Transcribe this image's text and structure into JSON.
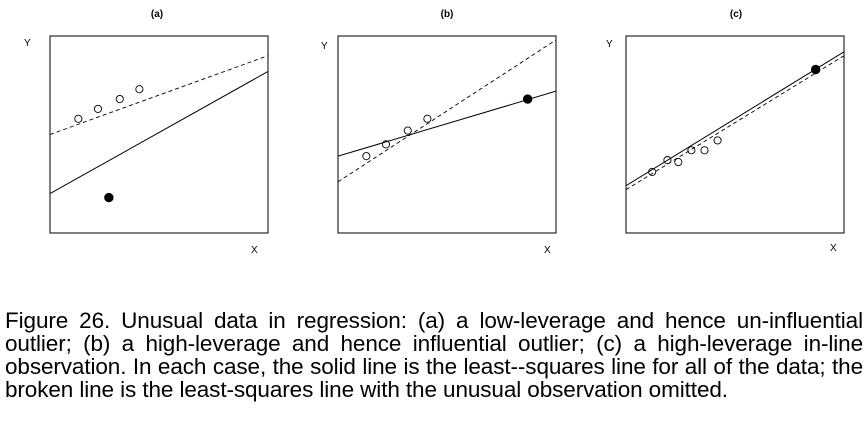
{
  "panels": [
    {
      "title": "(a)",
      "ylabel": "Y",
      "xlabel": "X",
      "open_points": [
        [
          0.13,
          0.58
        ],
        [
          0.22,
          0.63
        ],
        [
          0.32,
          0.68
        ],
        [
          0.41,
          0.73
        ]
      ],
      "filled_point": [
        0.27,
        0.18
      ],
      "solid_line": [
        [
          0.0,
          0.2
        ],
        [
          1.0,
          0.82
        ]
      ],
      "dashed_line": [
        [
          0.0,
          0.5
        ],
        [
          1.0,
          0.9
        ]
      ]
    },
    {
      "title": "(b)",
      "ylabel": "Y",
      "xlabel": "X",
      "open_points": [
        [
          0.13,
          0.39
        ],
        [
          0.22,
          0.45
        ],
        [
          0.32,
          0.52
        ],
        [
          0.41,
          0.58
        ]
      ],
      "filled_point": [
        0.87,
        0.68
      ],
      "solid_line": [
        [
          0.0,
          0.39
        ],
        [
          1.0,
          0.72
        ]
      ],
      "dashed_line": [
        [
          0.0,
          0.26
        ],
        [
          1.0,
          0.98
        ]
      ]
    },
    {
      "title": "(c)",
      "ylabel": "Y",
      "xlabel": "X",
      "open_points": [
        [
          0.12,
          0.31
        ],
        [
          0.19,
          0.37
        ],
        [
          0.24,
          0.36
        ],
        [
          0.3,
          0.42
        ],
        [
          0.36,
          0.42
        ],
        [
          0.42,
          0.47
        ]
      ],
      "filled_point": [
        0.87,
        0.83
      ],
      "solid_line": [
        [
          0.0,
          0.24
        ],
        [
          1.0,
          0.92
        ]
      ],
      "dashed_line": [
        [
          0.0,
          0.22
        ],
        [
          1.0,
          0.9
        ]
      ]
    }
  ],
  "caption": "Figure 26. Unusual data in regression: (a) a low-leverage and hence un-influential outlier; (b) a high-leverage and hence influential outlier; (c) a high-leverage in-line observation. In each case, the solid line is the least--squares line for all of the data; the broken line is the least-squares line with the unusual observation omitted."
}
